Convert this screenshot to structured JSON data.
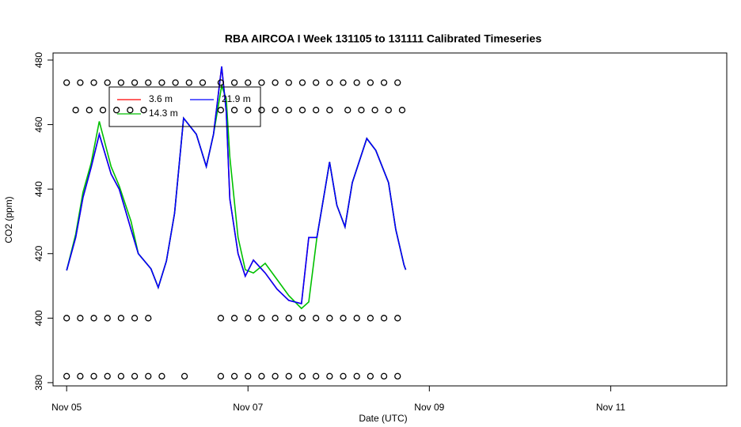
{
  "chart_data": {
    "type": "line",
    "title": "RBA AIRCOA I  Week 131105 to 131111  Calibrated Timeseries",
    "x_label": "Date (UTC)",
    "y_label": "CO2 (ppm)",
    "xlim": [
      -0.15,
      7.28
    ],
    "ylim": [
      379,
      482.2
    ],
    "xticks": [
      {
        "value": 0,
        "label": "Nov 05"
      },
      {
        "value": 2,
        "label": "Nov 07"
      },
      {
        "value": 4,
        "label": "Nov 09"
      },
      {
        "value": 6,
        "label": "Nov 11"
      }
    ],
    "yticks": [
      380,
      400,
      420,
      440,
      460,
      480
    ],
    "x": [
      0,
      0.1,
      0.18,
      0.27,
      0.36,
      0.49,
      0.58,
      0.71,
      0.79,
      0.93,
      1.01,
      1.1,
      1.19,
      1.29,
      1.43,
      1.54,
      1.62,
      1.71,
      1.76,
      1.8,
      1.89,
      1.97,
      2.06,
      2.19,
      2.32,
      2.45,
      2.59,
      2.67,
      2.76,
      2.85,
      2.9,
      2.98,
      3.07,
      3.15,
      3.31,
      3.41,
      3.55,
      3.63,
      3.72,
      3.74
    ],
    "series": [
      {
        "name": "3.6 m",
        "color": "#ff0000",
        "values": [
          414.8,
          425,
          437.4,
          446.7,
          457,
          444.7,
          440,
          427.5,
          420,
          415.3,
          409.5,
          417.7,
          432.5,
          462,
          457,
          447,
          457,
          478,
          464,
          437,
          420,
          413,
          418,
          414,
          409,
          405.5,
          404.5,
          425,
          425,
          440,
          448.4,
          435,
          428.3,
          442,
          455.7,
          452,
          442,
          427.5,
          416.5,
          415
        ]
      },
      {
        "name": "14.3 m",
        "color": "#00c000",
        "values": [
          414.8,
          426,
          439,
          448,
          461,
          447,
          441,
          430,
          420,
          415.3,
          409.5,
          417.7,
          432.5,
          462,
          457,
          447,
          457,
          472,
          468,
          450,
          425,
          415,
          414,
          417,
          412,
          407,
          403,
          405,
          425,
          440,
          448.4,
          435,
          428.3,
          442,
          455.7,
          452,
          442,
          427.5,
          416.5,
          415
        ]
      },
      {
        "name": "21.9 m",
        "color": "#0000ff",
        "values": [
          414.8,
          425,
          437.4,
          446.7,
          457,
          444.7,
          440,
          427.5,
          420,
          415.3,
          409.5,
          417.7,
          432.5,
          462,
          457,
          447,
          457,
          478,
          464,
          437,
          420,
          413,
          418,
          414,
          409,
          405.5,
          404.5,
          425,
          425,
          440,
          448.4,
          435,
          428.3,
          442,
          455.7,
          452,
          442,
          427.5,
          416.5,
          415
        ]
      }
    ],
    "points": {
      "color": "#000000",
      "x": [
        0,
        0.15,
        0.3,
        0.45,
        0.6,
        0.75,
        0.9,
        1.05,
        1.2,
        1.35,
        1.5,
        1.7,
        1.85,
        2.0,
        2.15,
        2.3,
        2.45,
        2.6,
        2.75,
        2.9,
        3.05,
        3.2,
        3.35,
        3.5,
        3.65,
        0.1,
        0.25,
        0.4,
        0.55,
        0.7,
        0.85,
        1.7,
        1.85,
        2.0,
        2.15,
        2.3,
        2.45,
        2.6,
        2.75,
        2.9,
        3.1,
        3.25,
        3.4,
        3.55,
        3.7,
        0,
        0.15,
        0.3,
        0.45,
        0.6,
        0.75,
        0.9,
        1.7,
        1.85,
        2.0,
        2.15,
        2.3,
        2.45,
        2.6,
        2.75,
        2.9,
        3.05,
        3.2,
        3.35,
        3.5,
        3.65,
        0,
        0.15,
        0.3,
        0.45,
        0.6,
        0.75,
        0.9,
        1.05,
        1.3,
        1.7,
        1.85,
        2.0,
        2.15,
        2.3,
        2.45,
        2.6,
        2.75,
        2.9,
        3.05,
        3.2,
        3.35,
        3.5,
        3.65
      ],
      "values": [
        473,
        473,
        473,
        473,
        473,
        473,
        473,
        473,
        473,
        473,
        473,
        473,
        473,
        473,
        473,
        473,
        473,
        473,
        473,
        473,
        473,
        473,
        473,
        473,
        473,
        464.5,
        464.5,
        464.5,
        464.5,
        464.5,
        464.5,
        464.5,
        464.5,
        464.5,
        464.5,
        464.5,
        464.5,
        464.5,
        464.5,
        464.5,
        464.5,
        464.5,
        464.5,
        464.5,
        464.5,
        400,
        400,
        400,
        400,
        400,
        400,
        400,
        400,
        400,
        400,
        400,
        400,
        400,
        400,
        400,
        400,
        400,
        400,
        400,
        400,
        400,
        382,
        382,
        382,
        382,
        382,
        382,
        382,
        382,
        382,
        382,
        382,
        382,
        382,
        382,
        382,
        382,
        382,
        382,
        382,
        382,
        382,
        382,
        382
      ]
    }
  }
}
